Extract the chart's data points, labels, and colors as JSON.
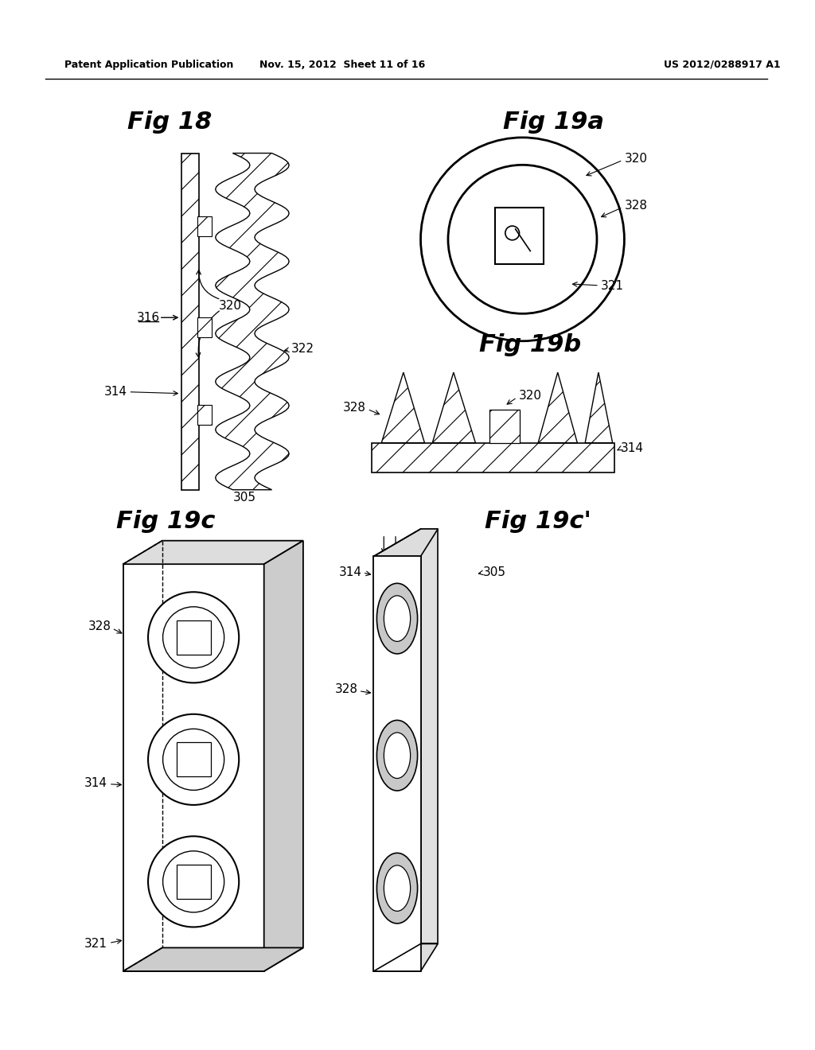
{
  "bg_color": "#ffffff",
  "header_text": "Patent Application Publication",
  "header_date": "Nov. 15, 2012  Sheet 11 of 16",
  "header_patent": "US 2012/0288917 A1",
  "fig18_title": "Fig 18",
  "fig19a_title": "Fig 19a",
  "fig19b_title": "Fig 19b",
  "fig19c_title": "Fig 19c",
  "fig19c_prime_title": "Fig 19c'",
  "hatch_pattern": "/",
  "hatch_color": "#000000",
  "line_color": "#000000",
  "face_color": "#ffffff"
}
